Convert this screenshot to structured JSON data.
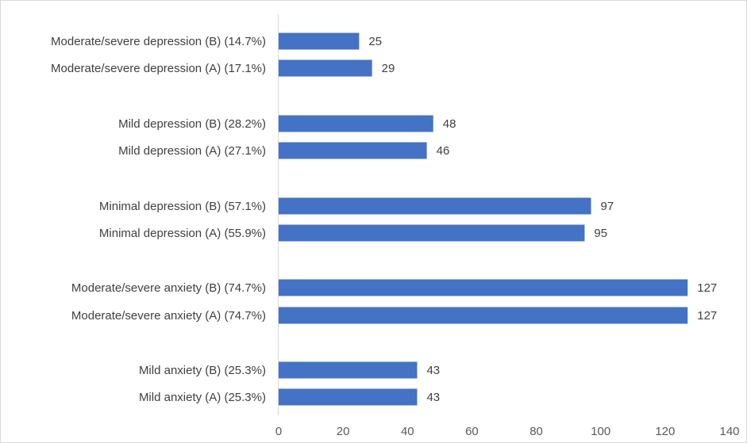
{
  "chart_data": {
    "type": "bar",
    "orientation": "horizontal",
    "categories": [
      "Moderate/severe depression (B) (14.7%)",
      "Moderate/severe depression (A) (17.1%)",
      "Mild depression (B) (28.2%)",
      "Mild depression (A) (27.1%)",
      "Minimal depression (B) (57.1%)",
      "Minimal depression (A) (55.9%)",
      "Moderate/severe anxiety (B) (74.7%)",
      "Moderate/severe anxiety (A) (74.7%)",
      "Mild anxiety (B) (25.3%)",
      "Mild anxiety (A) (25.3%)"
    ],
    "values": [
      25,
      29,
      48,
      46,
      97,
      95,
      127,
      127,
      43,
      43
    ],
    "xlim": [
      0,
      140
    ],
    "xticks": [
      0,
      20,
      40,
      60,
      80,
      100,
      120,
      140
    ],
    "title": "",
    "xlabel": "",
    "ylabel": "",
    "grid": false,
    "legend": "none",
    "data_labels": true,
    "bar_color": "#4472c4"
  }
}
